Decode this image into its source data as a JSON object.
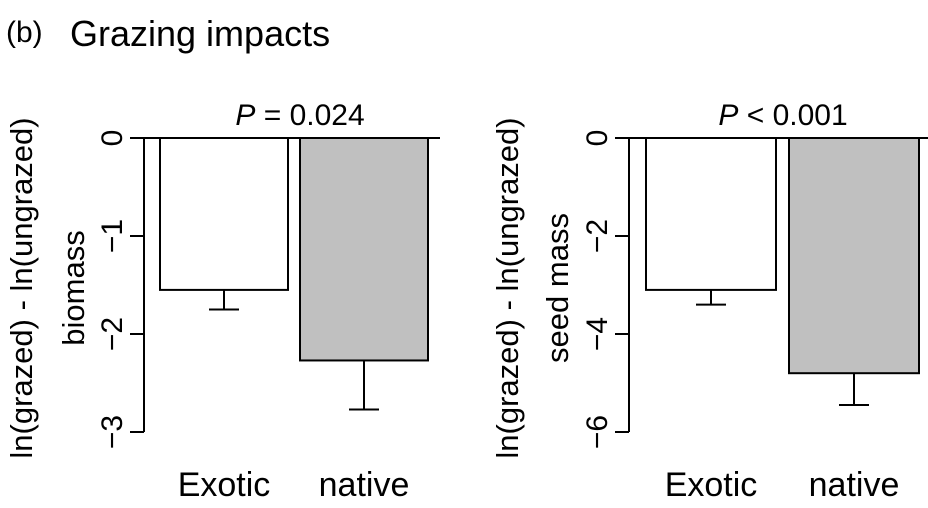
{
  "figure": {
    "panel_label": "(b)",
    "title": "Grazing impacts"
  },
  "chart_data": [
    {
      "type": "bar",
      "categories": [
        "Exotic",
        "native"
      ],
      "values": [
        -1.55,
        -2.27
      ],
      "errors": [
        0.2,
        0.5
      ],
      "bar_colors": [
        "#ffffff",
        "#c0c0c0"
      ],
      "ylabel_line1": "ln(grazed) - ln(ungrazed)",
      "ylabel_line2": "biomass",
      "yticks": [
        0,
        -1,
        -2,
        -3
      ],
      "ytick_labels": [
        "0",
        "−1",
        "−2",
        "−3"
      ],
      "ylim": [
        -3,
        0
      ],
      "annotation_italic": "P",
      "annotation_rest": " = 0.024",
      "grid": false,
      "legend": "none"
    },
    {
      "type": "bar",
      "categories": [
        "Exotic",
        "native"
      ],
      "values": [
        -3.1,
        -4.8
      ],
      "errors": [
        0.3,
        0.65
      ],
      "bar_colors": [
        "#ffffff",
        "#c0c0c0"
      ],
      "ylabel_line1": "ln(grazed) - ln(ungrazed)",
      "ylabel_line2": "seed mass",
      "yticks": [
        0,
        -2,
        -4,
        -6
      ],
      "ytick_labels": [
        "0",
        "−2",
        "−4",
        "−6"
      ],
      "ylim": [
        -6,
        0
      ],
      "annotation_italic": "P",
      "annotation_rest": " < 0.001",
      "grid": false,
      "legend": "none"
    }
  ]
}
